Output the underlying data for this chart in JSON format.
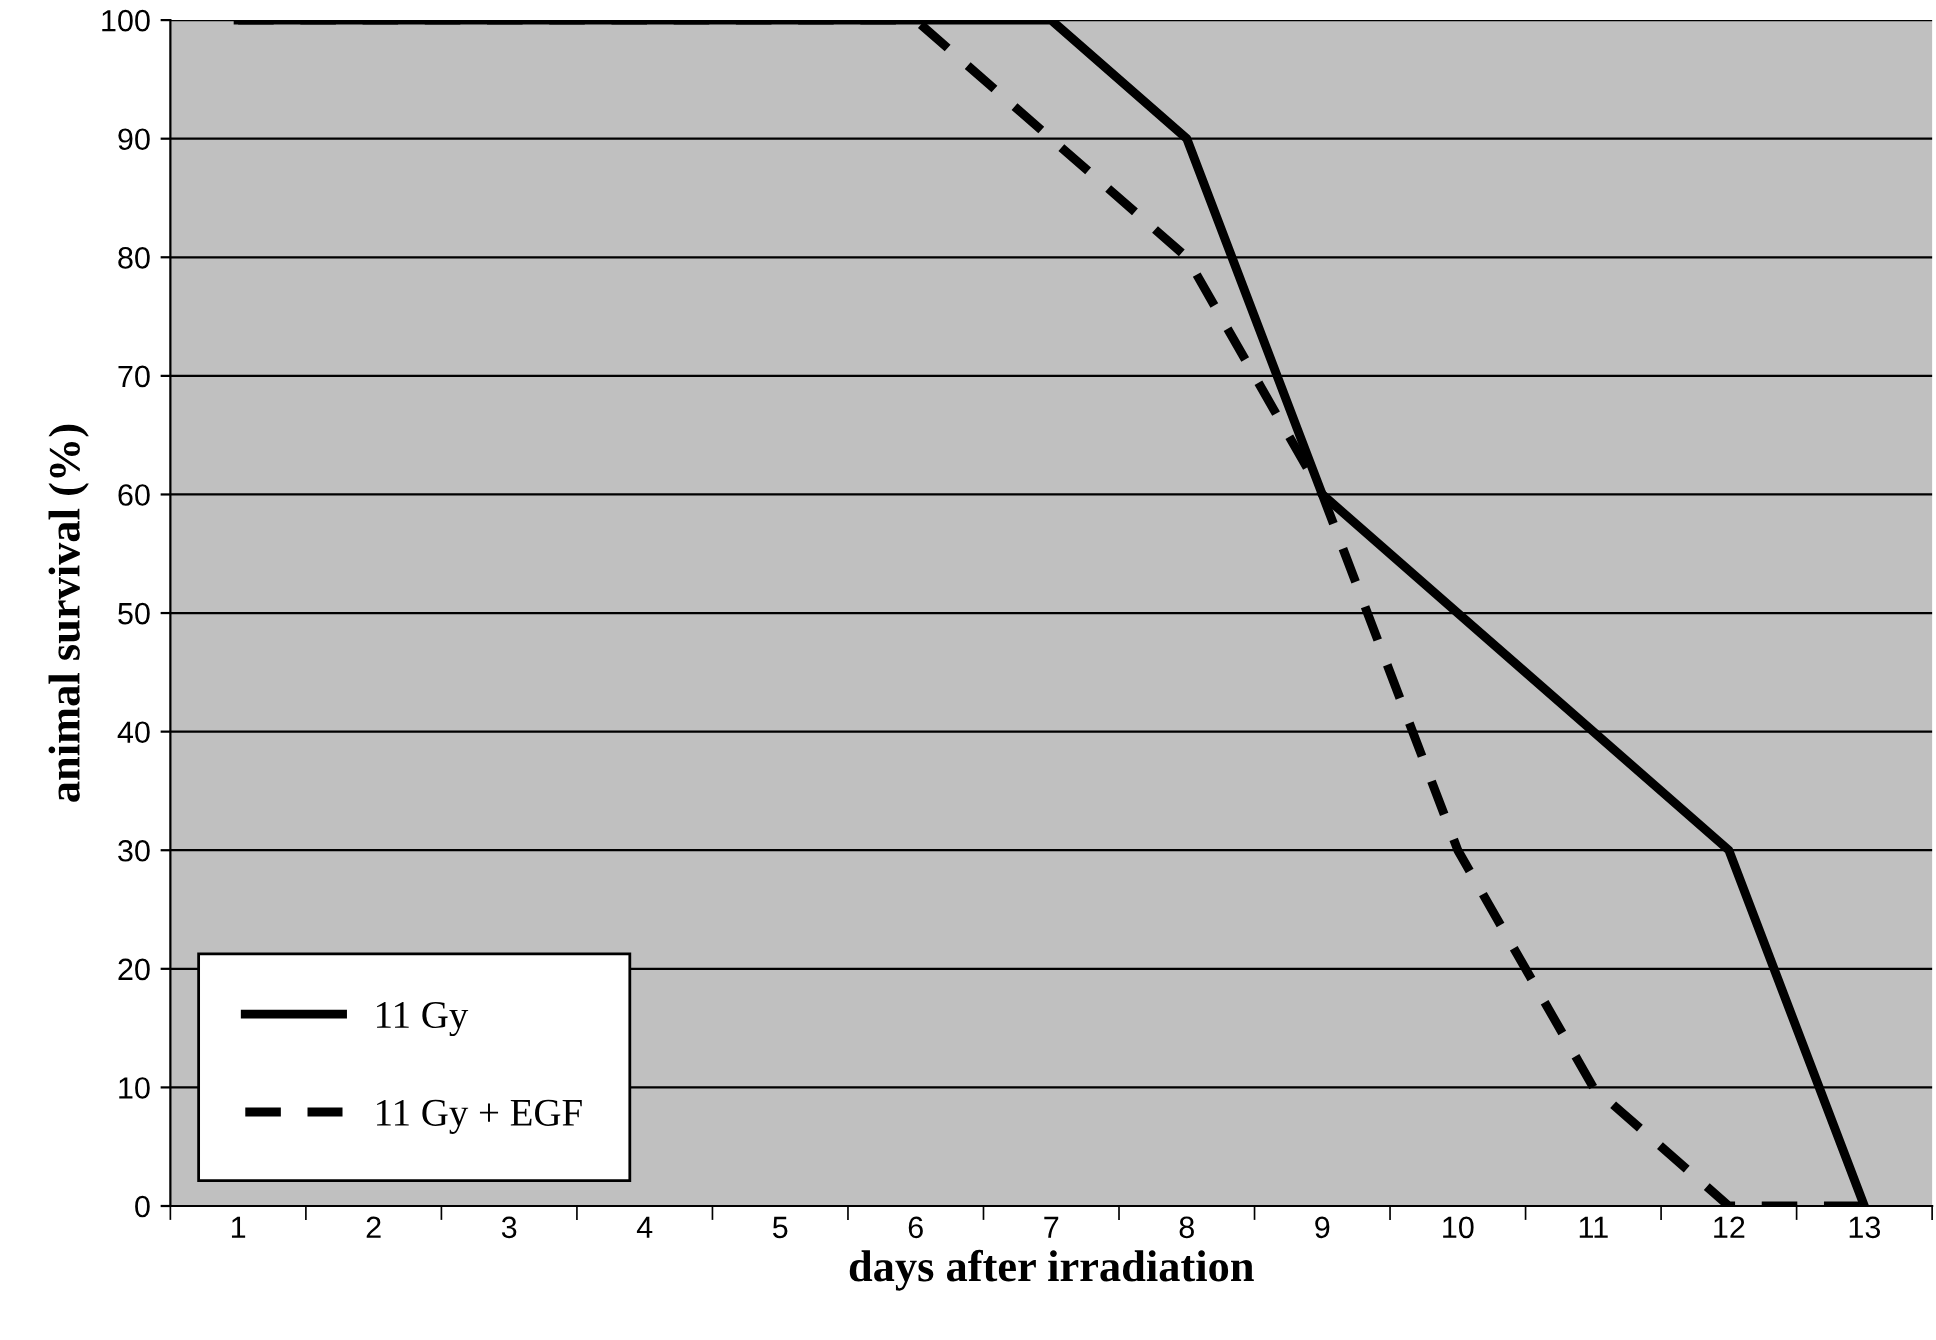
{
  "chart_data": {
    "type": "line",
    "xlabel": "days after irradiation",
    "ylabel": "animal survival (%)",
    "categories": [
      "1",
      "2",
      "3",
      "4",
      "5",
      "6",
      "7",
      "8",
      "9",
      "10",
      "11",
      "12",
      "13"
    ],
    "series": [
      {
        "name": "11 Gy",
        "color": "#000000",
        "line_style": "solid",
        "values": [
          100,
          100,
          100,
          100,
          100,
          100,
          100,
          90,
          60,
          50,
          40,
          30,
          0
        ]
      },
      {
        "name": "11 Gy + EGF",
        "color": "#000000",
        "line_style": "dashed",
        "values": [
          100,
          100,
          100,
          100,
          100,
          100,
          90,
          80,
          60,
          30,
          10,
          0,
          0
        ]
      }
    ],
    "ylim": [
      0,
      100
    ],
    "yticks": [
      0,
      10,
      20,
      30,
      40,
      50,
      60,
      70,
      80,
      90,
      100
    ],
    "grid": "y",
    "legend": "bottom left",
    "marker": "none"
  }
}
